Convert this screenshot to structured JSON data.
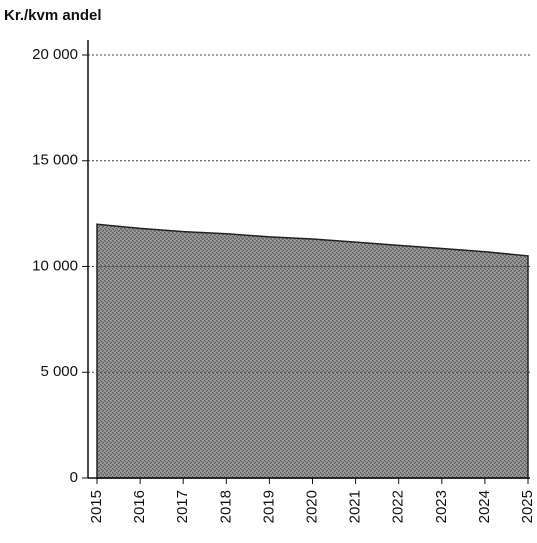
{
  "chart_data": {
    "type": "area",
    "title": "Kr./kvm andel",
    "categories": [
      "2015",
      "2016",
      "2017",
      "2018",
      "2019",
      "2020",
      "2021",
      "2022",
      "2023",
      "2024",
      "2025"
    ],
    "values": [
      12000,
      11800,
      11650,
      11550,
      11400,
      11300,
      11150,
      11000,
      10850,
      10700,
      10500
    ],
    "color": "#8c8c8c",
    "ylim": [
      0,
      20000
    ],
    "yticks": [
      0,
      {
        "value": 5000,
        "label": "5 000"
      },
      {
        "value": 10000,
        "label": "10 000"
      },
      {
        "value": 15000,
        "label": "15 000"
      },
      {
        "value": 20000,
        "label": "20 000"
      }
    ],
    "grid": true
  }
}
